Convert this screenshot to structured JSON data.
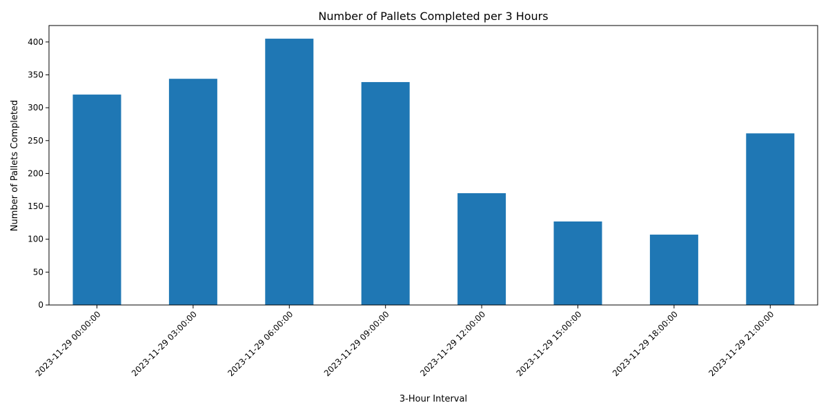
{
  "colors": {
    "bar": "#1f77b4"
  },
  "chart_data": {
    "type": "bar",
    "title": "Number of Pallets Completed per 3 Hours",
    "xlabel": "3-Hour Interval",
    "ylabel": "Number of Pallets Completed",
    "categories": [
      "2023-11-29 00:00:00",
      "2023-11-29 03:00:00",
      "2023-11-29 06:00:00",
      "2023-11-29 09:00:00",
      "2023-11-29 12:00:00",
      "2023-11-29 15:00:00",
      "2023-11-29 18:00:00",
      "2023-11-29 21:00:00"
    ],
    "values": [
      320,
      344,
      405,
      339,
      170,
      127,
      107,
      261
    ],
    "ylim": [
      0,
      425
    ],
    "yticks": [
      0,
      50,
      100,
      150,
      200,
      250,
      300,
      350,
      400
    ],
    "grid": false,
    "legend": "none"
  }
}
